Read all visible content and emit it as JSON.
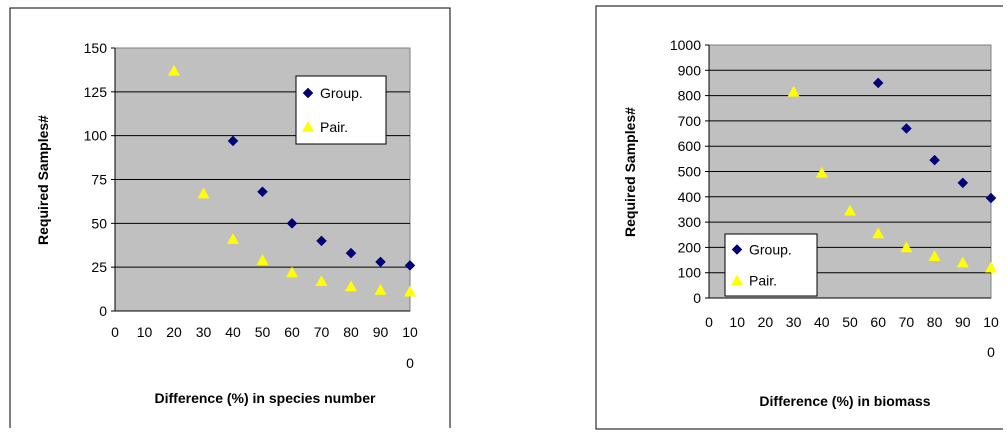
{
  "chart_data": [
    {
      "type": "scatter",
      "xlabel": "Difference (%) in species number",
      "ylabel": "Required Samples#",
      "xlim": [
        0,
        100
      ],
      "ylim": [
        0,
        150
      ],
      "x_ticks": [
        "0",
        "10",
        "20",
        "30",
        "40",
        "50",
        "60",
        "70",
        "80",
        "90",
        "10"
      ],
      "x_tick_wrap": "0",
      "y_ticks": [
        "0",
        "25",
        "50",
        "75",
        "100",
        "125",
        "150"
      ],
      "grid": "horizontal",
      "legend_position": "top-right",
      "plot_bg": "#c0c0c0",
      "series": [
        {
          "name": "Group.",
          "marker": "diamond",
          "color": "#000080",
          "x": [
            40,
            50,
            60,
            70,
            80,
            90,
            100
          ],
          "y": [
            97,
            68,
            50,
            40,
            33,
            28,
            26
          ]
        },
        {
          "name": "Pair.",
          "marker": "triangle",
          "color": "#ffff00",
          "x": [
            20,
            30,
            40,
            50,
            60,
            70,
            80,
            90,
            100
          ],
          "y": [
            137,
            67,
            41,
            29,
            22,
            17,
            14,
            12,
            11
          ]
        }
      ]
    },
    {
      "type": "scatter",
      "xlabel": "Difference (%) in biomass",
      "ylabel": "Required Samples#",
      "xlim": [
        0,
        100
      ],
      "ylim": [
        0,
        1000
      ],
      "x_ticks": [
        "0",
        "10",
        "20",
        "30",
        "40",
        "50",
        "60",
        "70",
        "80",
        "90",
        "10"
      ],
      "x_tick_wrap": "0",
      "y_ticks": [
        "0",
        "100",
        "200",
        "300",
        "400",
        "500",
        "600",
        "700",
        "800",
        "900",
        "1000"
      ],
      "grid": "horizontal",
      "legend_position": "bottom-left",
      "plot_bg": "#c0c0c0",
      "series": [
        {
          "name": "Group.",
          "marker": "diamond",
          "color": "#000080",
          "x": [
            60,
            70,
            80,
            90,
            100
          ],
          "y": [
            850,
            670,
            545,
            455,
            395
          ]
        },
        {
          "name": "Pair.",
          "marker": "triangle",
          "color": "#ffff00",
          "x": [
            30,
            40,
            50,
            60,
            70,
            80,
            90,
            100
          ],
          "y": [
            815,
            495,
            345,
            255,
            200,
            165,
            140,
            120
          ]
        }
      ]
    }
  ]
}
